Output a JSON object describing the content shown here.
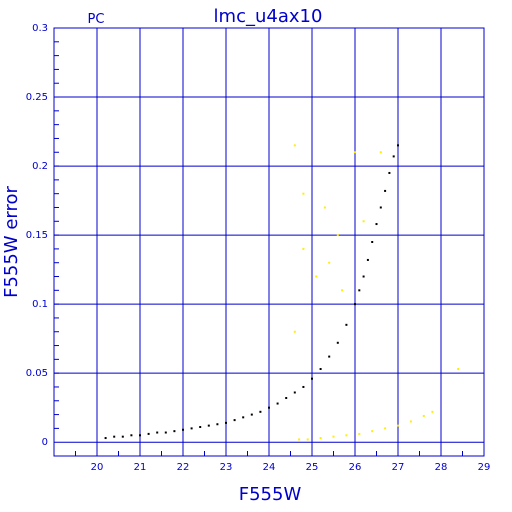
{
  "chart_data": {
    "type": "scatter",
    "title": "lmc_u4ax10",
    "corner_label": "PC",
    "xlabel": "F555W",
    "ylabel": "F555W error",
    "xlim": [
      19,
      29
    ],
    "ylim": [
      -0.01,
      0.3
    ],
    "x_ticks": [
      "20",
      "21",
      "22",
      "23",
      "24",
      "25",
      "26",
      "27",
      "28",
      "29"
    ],
    "y_ticks": [
      "0",
      "0.05",
      "0.1",
      "0.15",
      "0.2",
      "0.25",
      "0.3"
    ],
    "grid": true,
    "colors": {
      "axes": "#0000cc",
      "grid": "#0000cc",
      "main": "#000000",
      "outlier": "#ffee00"
    },
    "series": [
      {
        "color": "#000000",
        "x": [
          20.2,
          20.4,
          20.6,
          20.8,
          21.0,
          21.2,
          21.4,
          21.6,
          21.8,
          22.0,
          22.2,
          22.4,
          22.6,
          22.8,
          23.0,
          23.2,
          23.4,
          23.6,
          23.8,
          24.0,
          24.2,
          24.4,
          24.6,
          24.8,
          25.0,
          25.2,
          25.4,
          25.6,
          25.8,
          26.0,
          26.1,
          26.2,
          26.3,
          26.4,
          26.5,
          26.6,
          26.7,
          26.8,
          26.9,
          27.0
        ],
        "y": [
          0.003,
          0.004,
          0.004,
          0.005,
          0.005,
          0.006,
          0.007,
          0.007,
          0.008,
          0.009,
          0.01,
          0.011,
          0.012,
          0.013,
          0.014,
          0.016,
          0.018,
          0.02,
          0.022,
          0.025,
          0.028,
          0.032,
          0.036,
          0.04,
          0.046,
          0.053,
          0.062,
          0.072,
          0.085,
          0.1,
          0.11,
          0.12,
          0.132,
          0.145,
          0.158,
          0.17,
          0.182,
          0.195,
          0.207,
          0.215
        ]
      },
      {
        "color": "#ffee00",
        "x": [
          24.7,
          24.9,
          25.2,
          25.5,
          25.8,
          26.1,
          26.4,
          26.7,
          27.0,
          27.3,
          27.6,
          27.8,
          28.4,
          24.6,
          24.8,
          25.3,
          25.6,
          26.0,
          26.6,
          24.6,
          24.8,
          25.1,
          25.4,
          25.7,
          26.2
        ],
        "y": [
          0.002,
          0.002,
          0.003,
          0.004,
          0.005,
          0.006,
          0.008,
          0.01,
          0.012,
          0.015,
          0.019,
          0.022,
          0.053,
          0.215,
          0.18,
          0.17,
          0.15,
          0.21,
          0.21,
          0.08,
          0.14,
          0.12,
          0.13,
          0.11,
          0.16
        ]
      }
    ]
  }
}
